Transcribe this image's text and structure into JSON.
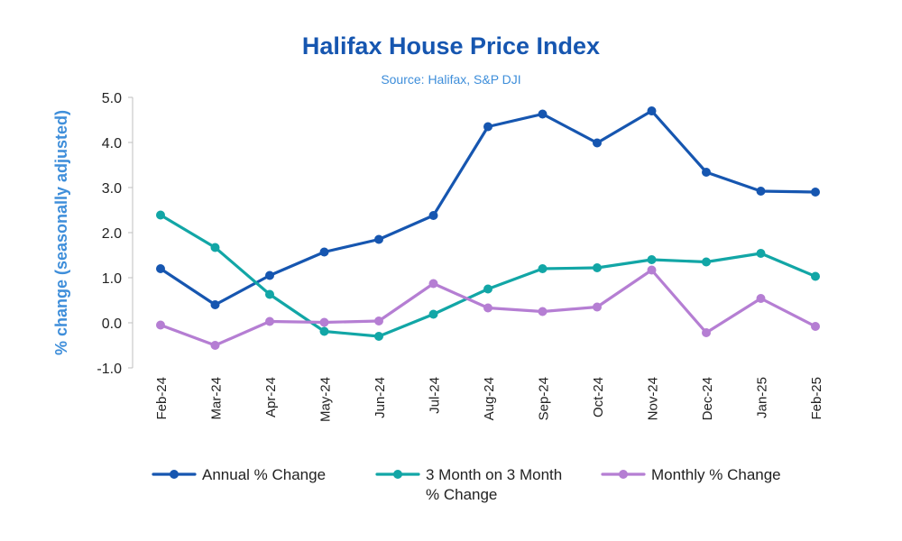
{
  "chart_data": {
    "type": "line",
    "title": "Halifax House Price Index",
    "subtitle": "Source: Halifax, S&P DJI",
    "ylabel": "% change (seasonally adjusted)",
    "xlabel": "",
    "ylim": [
      -1.0,
      5.0
    ],
    "yticks": [
      "5.0",
      "4.0",
      "3.0",
      "2.0",
      "1.0",
      "0.0",
      "-1.0"
    ],
    "ytick_values": [
      5,
      4,
      3,
      2,
      1,
      0,
      -1
    ],
    "categories": [
      "Feb-24",
      "Mar-24",
      "Apr-24",
      "May-24",
      "Jun-24",
      "Jul-24",
      "Aug-24",
      "Sep-24",
      "Oct-24",
      "Nov-24",
      "Dec-24",
      "Jan-25",
      "Feb-25"
    ],
    "grid": false,
    "legend_position": "bottom",
    "series": [
      {
        "name": "Annual % Change",
        "color": "#1656B0",
        "values": [
          1.2,
          0.4,
          1.05,
          1.57,
          1.85,
          2.38,
          4.35,
          4.63,
          3.99,
          4.7,
          3.34,
          2.92,
          2.9
        ]
      },
      {
        "name": "3 Month on 3 Month % Change",
        "color": "#12A6A6",
        "values": [
          2.39,
          1.67,
          0.63,
          -0.19,
          -0.3,
          0.19,
          0.75,
          1.2,
          1.22,
          1.4,
          1.35,
          1.54,
          1.03
        ]
      },
      {
        "name": "Monthly % Change",
        "color": "#B57ED3",
        "values": [
          -0.05,
          -0.5,
          0.03,
          0.01,
          0.04,
          0.87,
          0.33,
          0.25,
          0.35,
          1.17,
          -0.22,
          0.54,
          -0.08
        ]
      }
    ],
    "legend": [
      {
        "lines": [
          "Annual % Change"
        ]
      },
      {
        "lines": [
          "3 Month on 3 Month",
          "% Change"
        ]
      },
      {
        "lines": [
          "Monthly % Change"
        ]
      }
    ]
  }
}
